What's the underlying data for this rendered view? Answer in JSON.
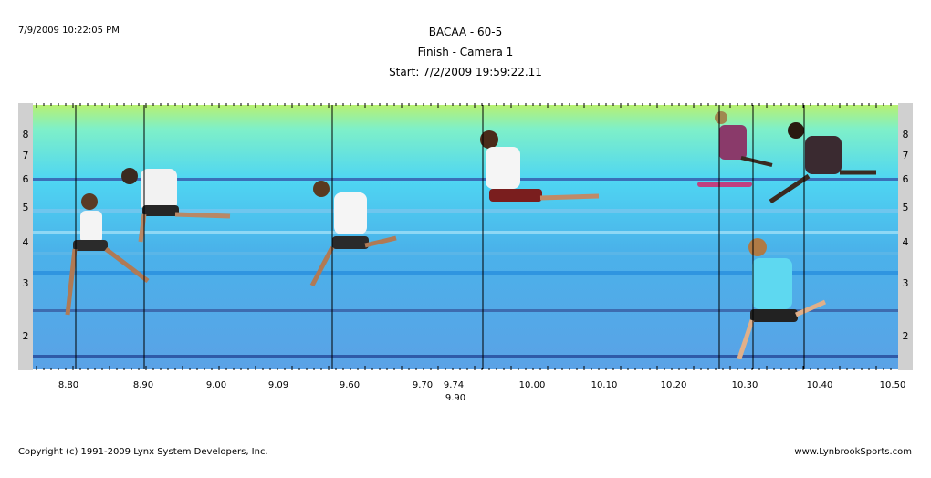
{
  "header": {
    "timestamp": "7/9/2009 10:22:05 PM",
    "title": "BACAA - 60-5",
    "subtitle": "Finish - Camera 1",
    "start": "Start: 7/2/2009 19:59:22.11"
  },
  "photo": {
    "lanes_left": [
      "8",
      "7",
      "6",
      "5",
      "4",
      "3",
      "2"
    ],
    "lanes_right": [
      "8",
      "7",
      "6",
      "5",
      "4",
      "3",
      "2"
    ],
    "time_ticks": [
      "8.80",
      "8.90",
      "9.00",
      "9.09",
      "9.60",
      "9.70",
      "9.74",
      "10.00",
      "10.10",
      "10.20",
      "10.30",
      "10.40",
      "10.50"
    ],
    "extra_tick": "9.90"
  },
  "footer": {
    "copyright": "Copyright (c) 1991-2009 Lynx System Developers, Inc.",
    "website": "www.LynbrookSports.com"
  }
}
